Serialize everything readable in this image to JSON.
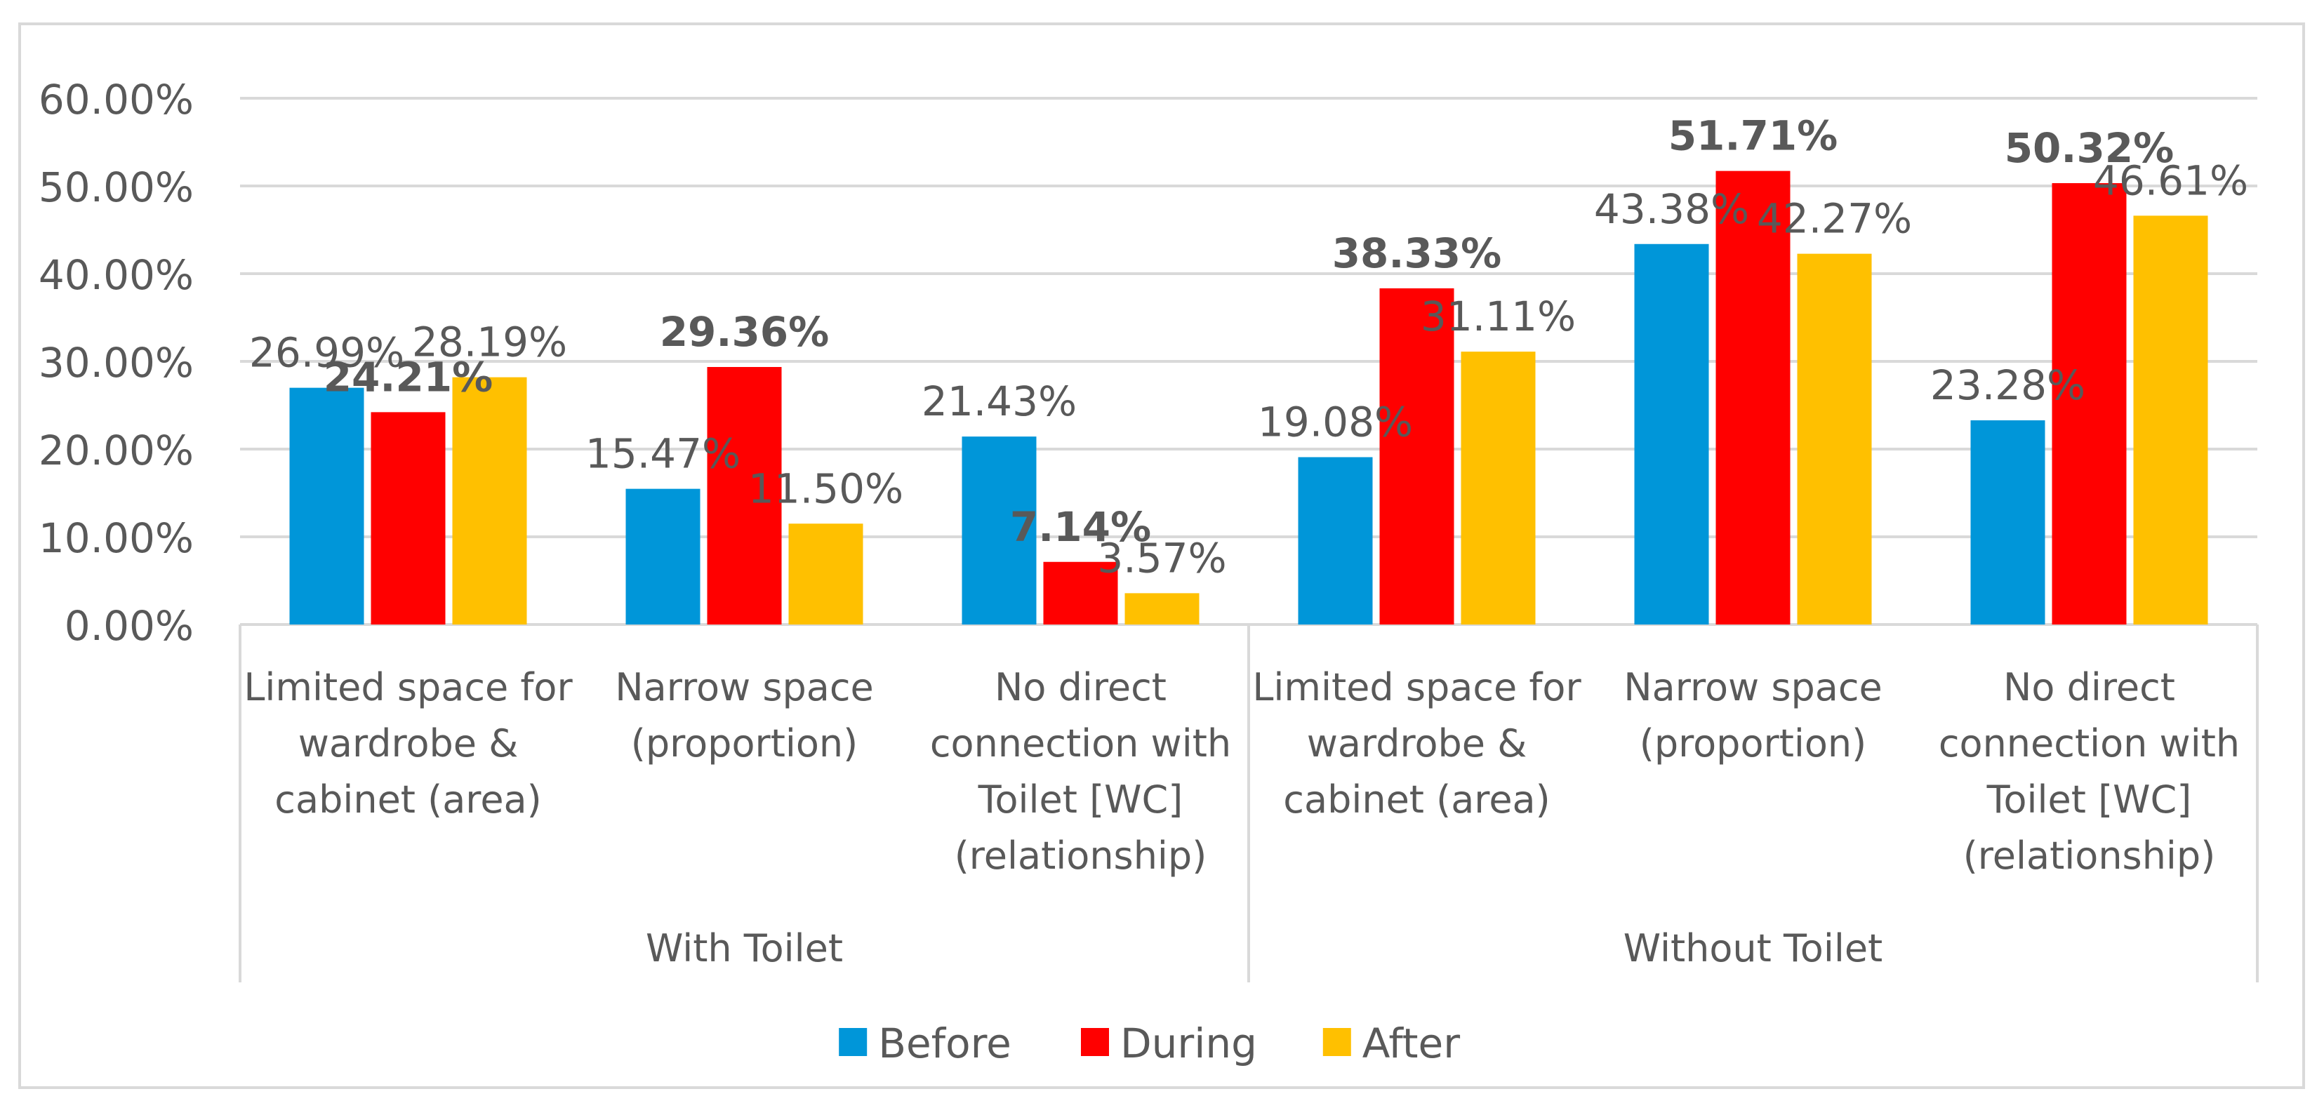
{
  "chart_data": {
    "type": "bar",
    "title": "",
    "xlabel": "",
    "ylabel": "",
    "ylim": [
      0,
      0.6
    ],
    "y_ticks": [
      {
        "value": 0.0,
        "label": "0.00%"
      },
      {
        "value": 0.1,
        "label": "10.00%"
      },
      {
        "value": 0.2,
        "label": "20.00%"
      },
      {
        "value": 0.3,
        "label": "30.00%"
      },
      {
        "value": 0.4,
        "label": "40.00%"
      },
      {
        "value": 0.5,
        "label": "50.00%"
      },
      {
        "value": 0.6,
        "label": "60.00%"
      }
    ],
    "grid": true,
    "legend_position": "bottom",
    "groups": [
      {
        "label": "With Toilet",
        "categories": [
          0,
          1,
          2
        ]
      },
      {
        "label": "Without Toilet",
        "categories": [
          3,
          4,
          5
        ]
      }
    ],
    "categories": [
      [
        "Limited space for",
        "wardrobe &",
        "cabinet (area)"
      ],
      [
        "Narrow space",
        "(proportion)"
      ],
      [
        "No direct",
        "connection with",
        "Toilet [WC]",
        "(relationship)"
      ],
      [
        "Limited space for",
        "wardrobe &",
        "cabinet (area)"
      ],
      [
        "Narrow space",
        "(proportion)"
      ],
      [
        "No direct",
        "connection with",
        "Toilet [WC]",
        "(relationship)"
      ]
    ],
    "series": [
      {
        "name": "Before",
        "color": "#0096D9",
        "values": [
          0.2699,
          0.1547,
          0.2143,
          0.1908,
          0.4338,
          0.2328
        ],
        "labels": [
          "26.99%",
          "15.47%",
          "21.43%",
          "19.08%",
          "43.38%",
          "23.28%"
        ],
        "bold": false
      },
      {
        "name": "During",
        "color": "#FF0000",
        "values": [
          0.2421,
          0.2936,
          0.0714,
          0.3833,
          0.5171,
          0.5032
        ],
        "labels": [
          "24.21%",
          "29.36%",
          "7.14%",
          "38.33%",
          "51.71%",
          "50.32%"
        ],
        "bold": true
      },
      {
        "name": "After",
        "color": "#FFC000",
        "values": [
          0.2819,
          0.115,
          0.0357,
          0.3111,
          0.4227,
          0.4661
        ],
        "labels": [
          "28.19%",
          "11.50%",
          "3.57%",
          "31.11%",
          "42.27%",
          "46.61%"
        ],
        "bold": false
      }
    ]
  }
}
